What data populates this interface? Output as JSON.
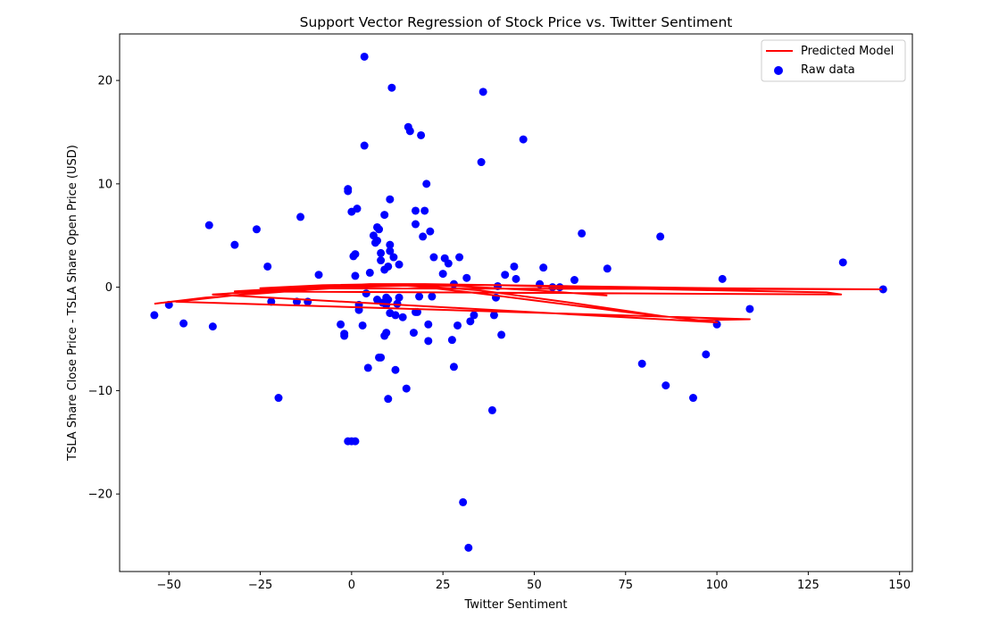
{
  "chart_data": {
    "type": "scatter",
    "title": "Support Vector Regression of Stock Price vs. Twitter Sentiment",
    "xlabel": "Twitter Sentiment",
    "ylabel": "TSLA Share Close Price - TSLA Share Open Price (USD)",
    "xlim": [
      -63.5,
      153.5
    ],
    "ylim": [
      -27.5,
      24.5
    ],
    "xticks": [
      -50,
      -25,
      0,
      25,
      50,
      75,
      100,
      125,
      150
    ],
    "xtick_labels": [
      "−50",
      "−25",
      "0",
      "25",
      "50",
      "75",
      "100",
      "125",
      "150"
    ],
    "yticks": [
      -20,
      -10,
      0,
      10,
      20
    ],
    "ytick_labels": [
      "−20",
      "−10",
      "0",
      "10",
      "20"
    ],
    "grid": false,
    "legend_position": "upper right",
    "series": [
      {
        "name": "Predicted Model",
        "kind": "line",
        "color": "#ff0000",
        "points": [
          [
            -54,
            -1.6
          ],
          [
            -40,
            -1.0
          ],
          [
            -25,
            -0.6
          ],
          [
            -10,
            -0.2
          ],
          [
            0,
            0.0
          ],
          [
            10,
            0.1
          ],
          [
            15,
            0.15
          ],
          [
            20,
            0.0
          ],
          [
            35,
            -0.6
          ],
          [
            55,
            -1.5
          ],
          [
            75,
            -2.4
          ],
          [
            95,
            -3.2
          ],
          [
            109,
            -3.1
          ],
          [
            -48,
            -1.4
          ],
          [
            -30,
            -0.7
          ],
          [
            -15,
            -0.3
          ],
          [
            0,
            0.1
          ],
          [
            15,
            0.2
          ],
          [
            35,
            -0.3
          ],
          [
            60,
            -1.5
          ],
          [
            85,
            -2.8
          ],
          [
            100,
            -3.4
          ],
          [
            -38,
            -0.7
          ],
          [
            -20,
            -0.3
          ],
          [
            -5,
            0.0
          ],
          [
            10,
            0.3
          ],
          [
            40,
            0.2
          ],
          [
            70,
            -0.1
          ],
          [
            100,
            -0.3
          ],
          [
            130,
            -0.5
          ],
          [
            134,
            -0.7
          ],
          [
            -32,
            -0.4
          ],
          [
            -12,
            0.0
          ],
          [
            5,
            0.3
          ],
          [
            20,
            0.3
          ],
          [
            60,
            0.1
          ],
          [
            100,
            -0.1
          ],
          [
            145,
            -0.2
          ],
          [
            -25,
            -0.1
          ],
          [
            -8,
            0.2
          ],
          [
            10,
            0.3
          ],
          [
            30,
            0.1
          ],
          [
            50,
            -0.3
          ],
          [
            70,
            -0.8
          ]
        ]
      },
      {
        "name": "Raw data",
        "kind": "scatter",
        "color": "#0000ff",
        "points": [
          [
            -54,
            -2.7
          ],
          [
            -50,
            -1.7
          ],
          [
            -46,
            -3.5
          ],
          [
            -39,
            6.0
          ],
          [
            -38,
            -3.8
          ],
          [
            -32,
            4.1
          ],
          [
            -26,
            5.6
          ],
          [
            -23,
            2.0
          ],
          [
            -22,
            -1.4
          ],
          [
            -20,
            -10.7
          ],
          [
            -15,
            -1.4
          ],
          [
            -14,
            6.8
          ],
          [
            -12,
            -1.4
          ],
          [
            -9,
            1.2
          ],
          [
            -3,
            -3.6
          ],
          [
            -2,
            -4.5
          ],
          [
            -2,
            -4.7
          ],
          [
            -1,
            9.3
          ],
          [
            -1,
            9.5
          ],
          [
            0,
            7.3
          ],
          [
            -1,
            -14.9
          ],
          [
            0,
            -14.9
          ],
          [
            1,
            -14.9
          ],
          [
            0.5,
            3.0
          ],
          [
            1,
            3.2
          ],
          [
            1,
            1.1
          ],
          [
            1.5,
            7.6
          ],
          [
            2,
            -1.7
          ],
          [
            2,
            -2.2
          ],
          [
            3,
            -3.7
          ],
          [
            3.5,
            13.7
          ],
          [
            3.5,
            22.3
          ],
          [
            4,
            -0.6
          ],
          [
            4.5,
            -7.8
          ],
          [
            5,
            1.4
          ],
          [
            6,
            5.0
          ],
          [
            6.5,
            4.3
          ],
          [
            7,
            4.5
          ],
          [
            7,
            -1.2
          ],
          [
            7,
            5.8
          ],
          [
            7.5,
            5.6
          ],
          [
            7.5,
            -6.8
          ],
          [
            8,
            2.6
          ],
          [
            8,
            3.3
          ],
          [
            8,
            -6.8
          ],
          [
            8.5,
            -1.5
          ],
          [
            9,
            7.0
          ],
          [
            9,
            1.7
          ],
          [
            9,
            -4.7
          ],
          [
            9.5,
            -1.0
          ],
          [
            9.5,
            -1.7
          ],
          [
            9.5,
            -4.4
          ],
          [
            10,
            2.0
          ],
          [
            10,
            -10.8
          ],
          [
            10,
            -1.2
          ],
          [
            10.5,
            4.1
          ],
          [
            10.5,
            8.5
          ],
          [
            10.5,
            3.5
          ],
          [
            10.5,
            -2.5
          ],
          [
            11,
            19.3
          ],
          [
            11.5,
            2.9
          ],
          [
            12,
            -2.7
          ],
          [
            12,
            -8.0
          ],
          [
            12.5,
            -1.6
          ],
          [
            13,
            2.2
          ],
          [
            13,
            -1.0
          ],
          [
            14,
            -2.9
          ],
          [
            15,
            -9.8
          ],
          [
            15.5,
            15.5
          ],
          [
            16,
            15.1
          ],
          [
            17,
            -4.4
          ],
          [
            17.5,
            -2.4
          ],
          [
            17.5,
            6.1
          ],
          [
            17.5,
            7.4
          ],
          [
            18,
            -2.4
          ],
          [
            18.5,
            -0.9
          ],
          [
            19,
            14.7
          ],
          [
            19.5,
            4.9
          ],
          [
            20,
            7.4
          ],
          [
            20.5,
            10.0
          ],
          [
            21,
            -3.6
          ],
          [
            21,
            -5.2
          ],
          [
            21.5,
            5.4
          ],
          [
            22,
            -0.9
          ],
          [
            22.5,
            2.9
          ],
          [
            25,
            1.3
          ],
          [
            25.5,
            2.8
          ],
          [
            26.5,
            2.3
          ],
          [
            27.5,
            -5.1
          ],
          [
            28,
            0.3
          ],
          [
            28,
            -7.7
          ],
          [
            29,
            -3.7
          ],
          [
            29.5,
            2.9
          ],
          [
            30.5,
            -20.8
          ],
          [
            31.5,
            0.9
          ],
          [
            32,
            -25.2
          ],
          [
            32.5,
            -3.3
          ],
          [
            33.5,
            -2.7
          ],
          [
            35.5,
            12.1
          ],
          [
            36,
            18.9
          ],
          [
            38.5,
            -11.9
          ],
          [
            39,
            -2.7
          ],
          [
            39.5,
            -1.0
          ],
          [
            40,
            0.1
          ],
          [
            41,
            -4.6
          ],
          [
            42,
            1.2
          ],
          [
            44.5,
            2.0
          ],
          [
            45,
            0.8
          ],
          [
            47,
            14.3
          ],
          [
            51.5,
            0.3
          ],
          [
            52.5,
            1.9
          ],
          [
            55,
            0.0
          ],
          [
            57,
            0.0
          ],
          [
            61,
            0.7
          ],
          [
            63,
            5.2
          ],
          [
            70,
            1.8
          ],
          [
            79.5,
            -7.4
          ],
          [
            84.5,
            4.9
          ],
          [
            86,
            -9.5
          ],
          [
            93.5,
            -10.7
          ],
          [
            97,
            -6.5
          ],
          [
            100,
            -3.6
          ],
          [
            101.5,
            0.8
          ],
          [
            109,
            -2.1
          ],
          [
            134.5,
            2.4
          ],
          [
            145.5,
            -0.2
          ]
        ]
      }
    ]
  }
}
